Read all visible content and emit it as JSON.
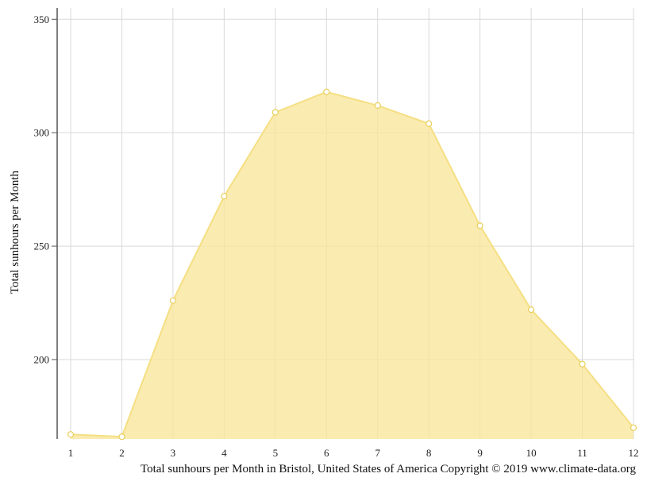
{
  "chart_data": {
    "type": "area",
    "x": [
      1,
      2,
      3,
      4,
      5,
      6,
      7,
      8,
      9,
      10,
      11,
      12
    ],
    "series": [
      {
        "values": [
          167,
          166,
          226,
          272,
          309,
          318,
          312,
          304,
          259,
          222,
          198,
          170
        ]
      }
    ],
    "ylabel": "Total sunhours per Month",
    "yticks": [
      200,
      250,
      300,
      350
    ],
    "xticks": [
      "1",
      "2",
      "3",
      "4",
      "5",
      "6",
      "7",
      "8",
      "9",
      "10",
      "11",
      "12"
    ],
    "ylim": [
      165,
      355
    ],
    "grid": true,
    "colors": {
      "fill": "#f8e69a",
      "line": "#f5df83",
      "marker_fill": "#ffffff",
      "grid": "#d9d9d9",
      "axis": "#555555"
    }
  },
  "caption": "Total sunhours per Month in Bristol, United States of America Copyright © 2019 www.climate-data.org"
}
